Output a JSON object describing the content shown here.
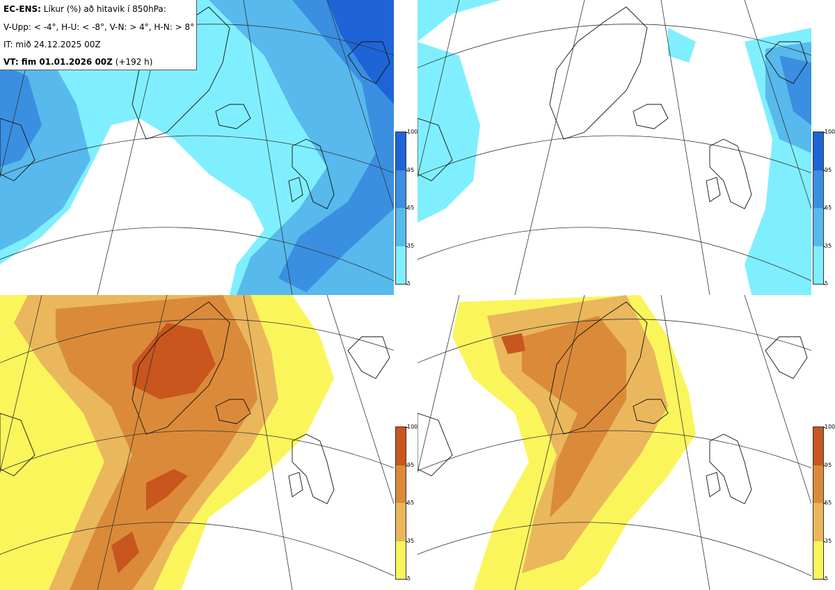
{
  "header": {
    "model_label": "EC-ENS:",
    "title_text": "Líkur (%) að hitavik í 850hPa:",
    "categories_text": "V-Upp: < -4°, H-U: < -8°, V-N: > 4°, H-N: > 8°",
    "init_time": "IT: mið 24.12.2025 00Z",
    "valid_label": "VT: fim 01.01.2026 00Z",
    "valid_lead": "(+192 h)"
  },
  "colorbar": {
    "ticks": [
      "100",
      "95",
      "65",
      "35",
      "5"
    ],
    "cold_colors": [
      "#1f64d6",
      "#3b8fe0",
      "#57b9ec",
      "#7fefff"
    ],
    "warm_colors": [
      "#c8561e",
      "#db8a3a",
      "#eab75c",
      "#fbf55c"
    ]
  },
  "panels": [
    {
      "name": "cold-4",
      "palette": "cold",
      "cover": "wide"
    },
    {
      "name": "cold-8",
      "palette": "cold",
      "cover": "narrow"
    },
    {
      "name": "warm-4",
      "palette": "warm",
      "cover": "wide"
    },
    {
      "name": "warm-8",
      "palette": "warm",
      "cover": "narrow"
    }
  ]
}
